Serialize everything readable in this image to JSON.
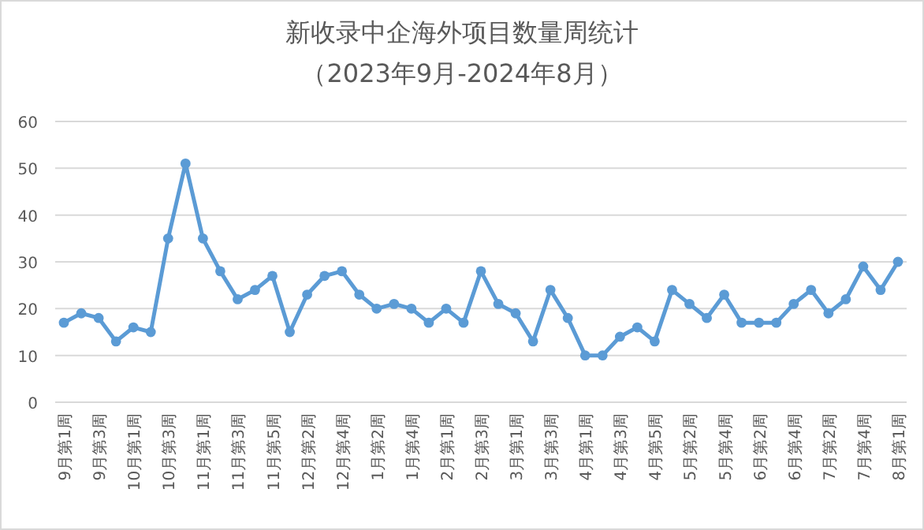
{
  "chart_data": {
    "type": "line",
    "title": "新收录中企海外项目数量周统计",
    "subtitle": "（2023年9月-2024年8月）",
    "categories": [
      "9月第1周",
      null,
      "9月第3周",
      null,
      "10月第1周",
      null,
      "10月第3周",
      null,
      "11月第1周",
      null,
      "11月第3周",
      null,
      "11月第5周",
      null,
      "12月第2周",
      null,
      "12月第4周",
      null,
      "1月第2周",
      null,
      "1月第4周",
      null,
      "2月第1周",
      null,
      "2月第3周",
      null,
      "3月第1周",
      null,
      "3月第3周",
      null,
      "4月第1周",
      null,
      "4月第3周",
      null,
      "4月第5周",
      null,
      "5月第2周",
      null,
      "5月第4周",
      null,
      "6月第2周",
      null,
      "6月第4周",
      null,
      "7月第2周",
      null,
      "7月第4周",
      null,
      "8月第1周"
    ],
    "series": [
      {
        "color": "#5b9bd5",
        "values": [
          17,
          19,
          18,
          13,
          16,
          15,
          35,
          51,
          35,
          28,
          22,
          24,
          27,
          15,
          23,
          27,
          28,
          23,
          20,
          21,
          20,
          17,
          20,
          17,
          28,
          21,
          19,
          13,
          24,
          18,
          10,
          10,
          14,
          16,
          13,
          24,
          21,
          18,
          23,
          17,
          17,
          17,
          21,
          24,
          19,
          22,
          29,
          24,
          30
        ]
      }
    ],
    "ylim": [
      0,
      60
    ],
    "yticks": [
      0,
      10,
      20,
      30,
      40,
      50,
      60
    ],
    "grid": "y",
    "marker": "circle",
    "line_style": "solid"
  }
}
